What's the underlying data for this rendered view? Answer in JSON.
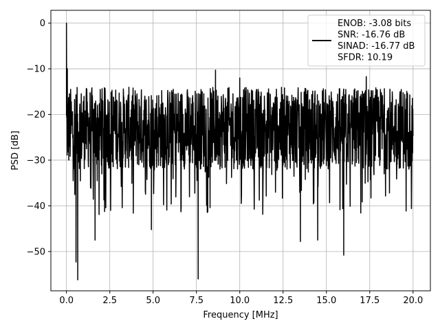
{
  "chart_data": {
    "type": "line",
    "title": "",
    "xlabel": "Frequency [MHz]",
    "ylabel": "PSD [dB]",
    "xlim": [
      -0.9,
      21.0
    ],
    "ylim": [
      -58.6,
      2.8
    ],
    "xticks": [
      0.0,
      2.5,
      5.0,
      7.5,
      10.0,
      12.5,
      15.0,
      17.5,
      20.0
    ],
    "xtick_labels": [
      "0.0",
      "2.5",
      "5.0",
      "7.5",
      "10.0",
      "12.5",
      "15.0",
      "17.5",
      "20.0"
    ],
    "yticks": [
      0,
      -10,
      -20,
      -30,
      -40,
      -50
    ],
    "ytick_labels": [
      "0",
      "−10",
      "−20",
      "−30",
      "−40",
      "−50"
    ],
    "grid": true,
    "legend_position": "top-right",
    "series": [
      {
        "name": "ENOB: -3.08 bits\nSNR: -16.76 dB\nSINAD: -16.77 dB\nSFDR: 10.19",
        "color": "#000000",
        "description": "noisy PSD between about -12 and -35 dB across 0-20 MHz, peak 0 dB at 0 MHz",
        "peaks": [
          {
            "x": 0.0,
            "y": 0.0
          },
          {
            "x": 0.05,
            "y": -10.0
          },
          {
            "x": 8.6,
            "y": -10.3
          },
          {
            "x": 10.0,
            "y": -12.0
          },
          {
            "x": 17.3,
            "y": -11.7
          }
        ],
        "dips": [
          {
            "x": 0.65,
            "y": -56.2
          },
          {
            "x": 0.55,
            "y": -52.3
          },
          {
            "x": 7.6,
            "y": -56.0
          },
          {
            "x": 16.0,
            "y": -50.8
          },
          {
            "x": 13.5,
            "y": -47.8
          },
          {
            "x": 14.5,
            "y": -47.5
          },
          {
            "x": 1.65,
            "y": -47.5
          },
          {
            "x": 4.9,
            "y": -45.2
          }
        ],
        "band": {
          "upper": -14,
          "lower": -32
        }
      }
    ],
    "legend_lines": [
      "ENOB: -3.08 bits",
      "SNR: -16.76 dB",
      "SINAD: -16.77 dB",
      "SFDR: 10.19"
    ]
  }
}
